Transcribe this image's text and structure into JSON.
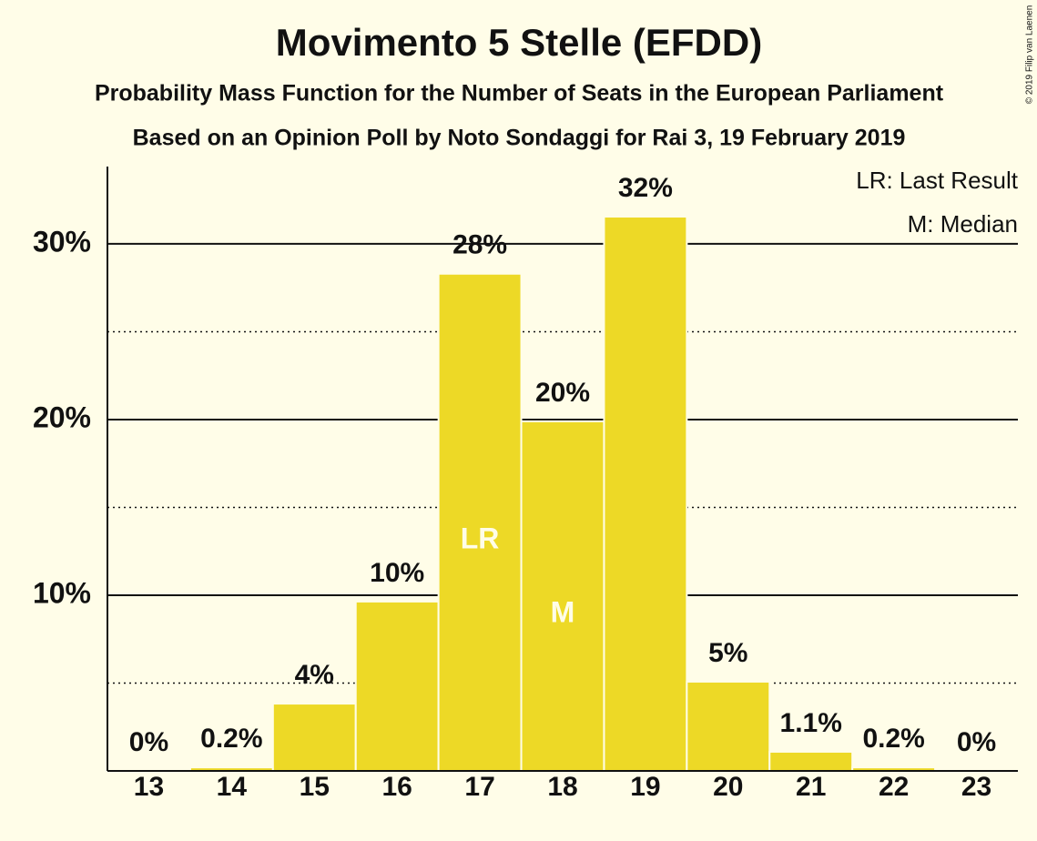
{
  "chart_data": {
    "type": "bar",
    "title": "Movimento 5 Stelle (EFDD)",
    "subtitle": "Probability Mass Function for the Number of Seats in the European Parliament",
    "subtitle2": "Based on an Opinion Poll by Noto Sondaggi for Rai 3, 19 February 2019",
    "copyright": "© 2019 Filip van Laenen",
    "legend": [
      "LR: Last Result",
      "M: Median"
    ],
    "categories": [
      "13",
      "14",
      "15",
      "16",
      "17",
      "18",
      "19",
      "20",
      "21",
      "22",
      "23"
    ],
    "values": [
      0,
      0.2,
      3.83,
      9.64,
      28.3,
      19.9,
      31.55,
      5.08,
      1.09,
      0.2,
      0
    ],
    "value_labels": [
      "0%",
      "0.2%",
      "4%",
      "10%",
      "28%",
      "20%",
      "32%",
      "5%",
      "1.1%",
      "0.2%",
      "0%"
    ],
    "markers": [
      {
        "category": "17",
        "label": "LR"
      },
      {
        "category": "18",
        "label": "M"
      }
    ],
    "color": "#EDD926",
    "ylim": [
      0,
      34.4
    ],
    "yticks": [
      {
        "value": 10,
        "label": "10%"
      },
      {
        "value": 20,
        "label": "20%"
      },
      {
        "value": 30,
        "label": "30%"
      }
    ],
    "minor_yticks": [
      5,
      15,
      25
    ],
    "grid": true
  }
}
